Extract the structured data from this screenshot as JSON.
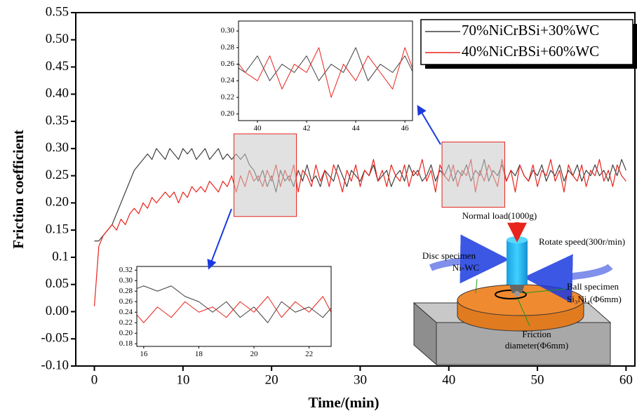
{
  "chart_data": {
    "type": "line",
    "xlabel": "Time/(min)",
    "ylabel": "Friction coefficient",
    "xlim": [
      -2.1,
      61
    ],
    "ylim": [
      -0.1,
      0.55
    ],
    "xticks": [
      0,
      10,
      20,
      30,
      40,
      50,
      60
    ],
    "yticks": [
      {
        "value": -0.1,
        "label": "-0.10"
      },
      -0.05,
      {
        "value": 0,
        "label": "0.00"
      },
      0.05,
      0.1,
      0.15,
      {
        "value": 0.2,
        "label": "0.20"
      },
      0.25,
      {
        "value": 0.3,
        "label": "0.30"
      },
      0.35,
      {
        "value": 0.4,
        "label": "0.40"
      },
      0.45,
      {
        "value": 0.5,
        "label": "0.50"
      },
      0.55
    ],
    "x": [
      0,
      0.5,
      1,
      1.5,
      2,
      2.5,
      3,
      3.5,
      4,
      4.5,
      5,
      5.5,
      6,
      6.5,
      7,
      7.5,
      8,
      8.5,
      9,
      9.5,
      10,
      10.5,
      11,
      11.5,
      12,
      12.5,
      13,
      13.5,
      14,
      14.5,
      15,
      15.5,
      16,
      16.5,
      17,
      17.5,
      18,
      18.5,
      19,
      19.5,
      20,
      20.5,
      21,
      21.5,
      22,
      22.5,
      23,
      23.5,
      24,
      24.5,
      25,
      25.5,
      26,
      26.5,
      27,
      27.5,
      28,
      28.5,
      29,
      29.5,
      30,
      30.5,
      31,
      31.5,
      32,
      32.5,
      33,
      33.5,
      34,
      34.5,
      35,
      35.5,
      36,
      36.5,
      37,
      37.5,
      38,
      38.5,
      39,
      39.5,
      40,
      40.5,
      41,
      41.5,
      42,
      42.5,
      43,
      43.5,
      44,
      44.5,
      45,
      45.5,
      46,
      46.5,
      47,
      47.5,
      48,
      48.5,
      49,
      49.5,
      50,
      50.5,
      51,
      51.5,
      52,
      52.5,
      53,
      53.5,
      54,
      54.5,
      55,
      55.5,
      56,
      56.5,
      57,
      57.5,
      58,
      58.5,
      59,
      59.5,
      60
    ],
    "series": [
      {
        "name": "70%NiCrBSi+30%WC",
        "color": "#404040",
        "values": [
          0.13,
          0.13,
          0.14,
          0.15,
          0.16,
          0.18,
          0.2,
          0.22,
          0.24,
          0.26,
          0.27,
          0.28,
          0.29,
          0.28,
          0.3,
          0.29,
          0.28,
          0.3,
          0.29,
          0.28,
          0.3,
          0.29,
          0.3,
          0.28,
          0.29,
          0.3,
          0.28,
          0.29,
          0.3,
          0.28,
          0.29,
          0.28,
          0.29,
          0.28,
          0.29,
          0.27,
          0.26,
          0.24,
          0.26,
          0.23,
          0.25,
          0.22,
          0.26,
          0.24,
          0.25,
          0.23,
          0.26,
          0.24,
          0.27,
          0.24,
          0.25,
          0.23,
          0.26,
          0.25,
          0.24,
          0.27,
          0.25,
          0.23,
          0.26,
          0.25,
          0.24,
          0.26,
          0.25,
          0.27,
          0.24,
          0.25,
          0.26,
          0.23,
          0.25,
          0.26,
          0.24,
          0.27,
          0.25,
          0.26,
          0.24,
          0.25,
          0.27,
          0.24,
          0.26,
          0.25,
          0.27,
          0.24,
          0.26,
          0.25,
          0.27,
          0.24,
          0.26,
          0.25,
          0.28,
          0.24,
          0.26,
          0.25,
          0.27,
          0.24,
          0.26,
          0.25,
          0.27,
          0.25,
          0.24,
          0.26,
          0.25,
          0.27,
          0.24,
          0.26,
          0.25,
          0.27,
          0.24,
          0.26,
          0.25,
          0.27,
          0.24,
          0.26,
          0.25,
          0.27,
          0.25,
          0.26,
          0.24,
          0.27,
          0.25,
          0.28,
          0.26
        ]
      },
      {
        "name": "40%NiCrBSi+60%WC",
        "color": "#e8241c",
        "values": [
          0.01,
          0.12,
          0.14,
          0.15,
          0.16,
          0.15,
          0.17,
          0.16,
          0.18,
          0.19,
          0.18,
          0.2,
          0.19,
          0.21,
          0.2,
          0.21,
          0.22,
          0.21,
          0.22,
          0.2,
          0.22,
          0.21,
          0.23,
          0.22,
          0.23,
          0.22,
          0.24,
          0.23,
          0.22,
          0.24,
          0.23,
          0.25,
          0.22,
          0.25,
          0.23,
          0.26,
          0.24,
          0.25,
          0.23,
          0.26,
          0.24,
          0.27,
          0.23,
          0.26,
          0.24,
          0.27,
          0.22,
          0.26,
          0.25,
          0.23,
          0.27,
          0.24,
          0.26,
          0.23,
          0.27,
          0.25,
          0.22,
          0.26,
          0.24,
          0.27,
          0.23,
          0.26,
          0.25,
          0.28,
          0.24,
          0.26,
          0.23,
          0.27,
          0.25,
          0.24,
          0.27,
          0.23,
          0.26,
          0.25,
          0.28,
          0.24,
          0.26,
          0.22,
          0.27,
          0.25,
          0.24,
          0.27,
          0.23,
          0.26,
          0.25,
          0.28,
          0.22,
          0.26,
          0.24,
          0.27,
          0.25,
          0.23,
          0.28,
          0.24,
          0.26,
          0.22,
          0.27,
          0.25,
          0.24,
          0.27,
          0.23,
          0.26,
          0.25,
          0.28,
          0.24,
          0.26,
          0.22,
          0.27,
          0.25,
          0.24,
          0.27,
          0.23,
          0.26,
          0.25,
          0.28,
          0.24,
          0.26,
          0.23,
          0.27,
          0.25,
          0.24
        ]
      }
    ],
    "insets": [
      {
        "xlim": [
          39.23,
          46.31
        ],
        "ylim": [
          0.192,
          0.312
        ],
        "xticks": [
          40,
          42,
          44,
          46
        ],
        "yticks": [
          {
            "value": 0.2,
            "label": "0.20"
          },
          0.22,
          0.24,
          0.26,
          0.28,
          {
            "value": 0.3,
            "label": "0.30"
          }
        ]
      },
      {
        "xlim": [
          15.75,
          22.8
        ],
        "ylim": [
          0.175,
          0.327
        ],
        "xticks": [
          16,
          18,
          20,
          22
        ],
        "yticks": [
          0.18,
          {
            "value": 0.2,
            "label": "0.20"
          },
          0.22,
          0.24,
          0.26,
          0.28,
          {
            "value": 0.3,
            "label": "0.30"
          },
          0.32
        ]
      }
    ]
  },
  "diagram": {
    "labels": [
      "Normal load(1000g)",
      "Rotate speed(300r/min)",
      "Disc specimen",
      "Ni-WC",
      "Ball specimen",
      "Si₃Ni₄(Φ6mm)",
      "Friction",
      "diameter(Φ6mm)"
    ]
  }
}
